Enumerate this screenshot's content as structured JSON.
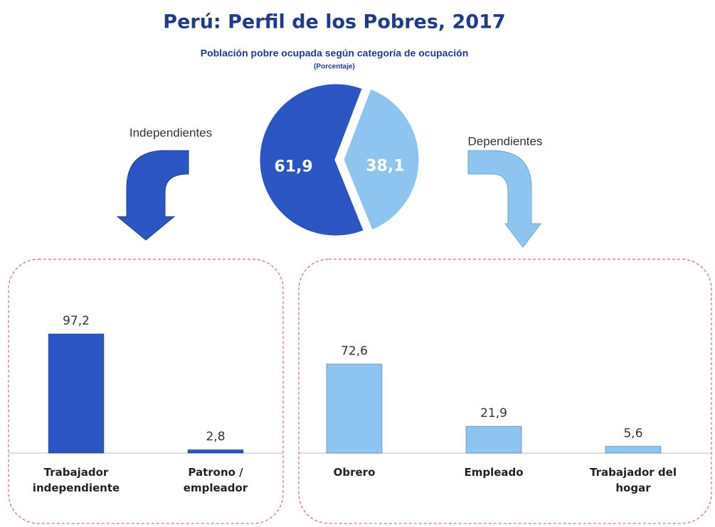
{
  "chart_data": [
    {
      "type": "pie",
      "title": "Perú: Perfil de los Pobres, 2017",
      "subtitle": "Población pobre ocupada según categoría de ocupación",
      "note": "(Porcentaje)",
      "categories": [
        "Independientes",
        "Dependientes"
      ],
      "values": [
        61.9,
        38.1
      ],
      "value_labels": [
        "61,9",
        "38,1"
      ],
      "colors": [
        "#2b55c2",
        "#8ec5f0"
      ]
    },
    {
      "type": "bar",
      "categories": [
        "Trabajador independiente",
        "Patrono / empleador"
      ],
      "values": [
        97.2,
        2.8
      ],
      "value_labels": [
        "97,2",
        "2,8"
      ],
      "color": "#2b55c2"
    },
    {
      "type": "bar",
      "categories": [
        "Obrero",
        "Empleado",
        "Trabajador del hogar"
      ],
      "values": [
        72.6,
        21.9,
        5.6
      ],
      "value_labels": [
        "72,6",
        "21,9",
        "5,6"
      ],
      "color": "#8ec5f0"
    }
  ]
}
